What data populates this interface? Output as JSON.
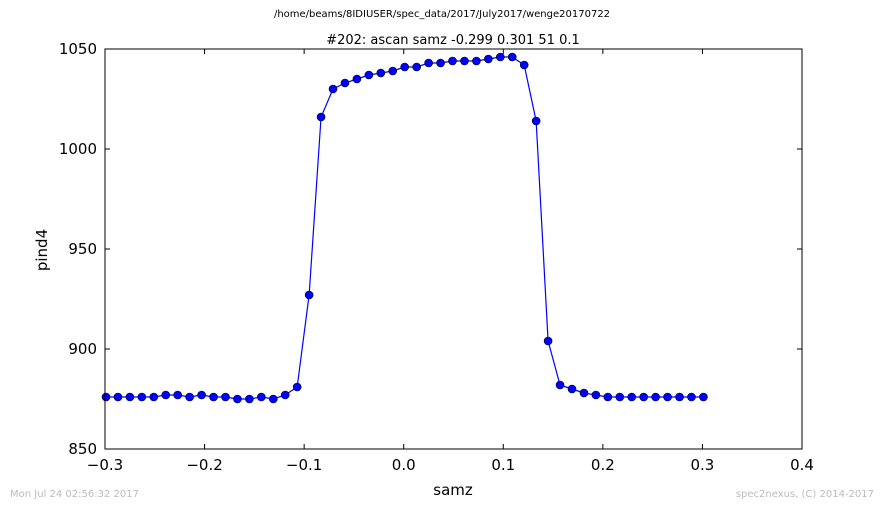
{
  "figure": {
    "suptitle": "/home/beams/8IDIUSER/spec_data/2017/July2017/wenge20170722",
    "footer_left": "Mon Jul 24 02:56:32 2017",
    "footer_right": "spec2nexus, (C) 2014-2017"
  },
  "chart_data": {
    "type": "line",
    "title": "#202: ascan  samz -0.299 0.301  51 0.1",
    "xlabel": "samz",
    "ylabel": "pind4",
    "xlim": [
      -0.3,
      0.4
    ],
    "ylim": [
      850,
      1050
    ],
    "xticks": [
      -0.3,
      -0.2,
      -0.1,
      0.0,
      0.1,
      0.2,
      0.3,
      0.4
    ],
    "xtick_labels": [
      "−0.3",
      "−0.2",
      "−0.1",
      "0.0",
      "0.1",
      "0.2",
      "0.3",
      "0.4"
    ],
    "yticks": [
      850,
      900,
      950,
      1000,
      1050
    ],
    "ytick_labels": [
      "850",
      "900",
      "950",
      "1000",
      "1050"
    ],
    "grid": false,
    "legend": false,
    "line_color": "#0000ff",
    "marker_color": "#0000ff",
    "series": [
      {
        "x": [
          -0.299,
          -0.287,
          -0.275,
          -0.263,
          -0.251,
          -0.239,
          -0.227,
          -0.215,
          -0.203,
          -0.191,
          -0.179,
          -0.167,
          -0.155,
          -0.143,
          -0.131,
          -0.119,
          -0.107,
          -0.095,
          -0.083,
          -0.071,
          -0.059,
          -0.047,
          -0.035,
          -0.023,
          -0.011,
          0.001,
          0.013,
          0.025,
          0.037,
          0.049,
          0.061,
          0.073,
          0.085,
          0.097,
          0.109,
          0.121,
          0.133,
          0.145,
          0.157,
          0.169,
          0.181,
          0.193,
          0.205,
          0.217,
          0.229,
          0.241,
          0.253,
          0.265,
          0.277,
          0.289,
          0.301
        ],
        "y": [
          876,
          876,
          876,
          876,
          876,
          877,
          877,
          876,
          877,
          876,
          876,
          875,
          875,
          876,
          875,
          877,
          881,
          927,
          1016,
          1030,
          1033,
          1035,
          1037,
          1038,
          1039,
          1041,
          1041,
          1043,
          1043,
          1044,
          1044,
          1044,
          1045,
          1046,
          1046,
          1042,
          1014,
          904,
          882,
          880,
          878,
          877,
          876,
          876,
          876,
          876,
          876,
          876,
          876,
          876,
          876
        ]
      }
    ]
  }
}
